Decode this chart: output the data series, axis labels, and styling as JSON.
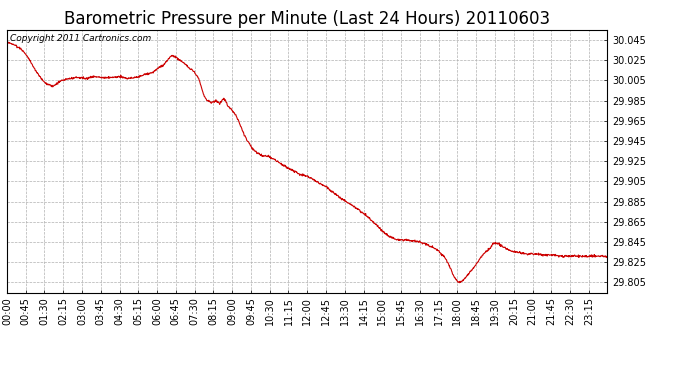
{
  "title": "Barometric Pressure per Minute (Last 24 Hours) 20110603",
  "copyright_text": "Copyright 2011 Cartronics.com",
  "line_color": "#cc0000",
  "background_color": "#ffffff",
  "grid_color": "#b0b0b0",
  "yticks": [
    29.805,
    29.825,
    29.845,
    29.865,
    29.885,
    29.905,
    29.925,
    29.945,
    29.965,
    29.985,
    30.005,
    30.025,
    30.045
  ],
  "ylim": [
    29.795,
    30.055
  ],
  "xtick_labels": [
    "00:00",
    "00:45",
    "01:30",
    "02:15",
    "03:00",
    "03:45",
    "04:30",
    "05:15",
    "06:00",
    "06:45",
    "07:30",
    "08:15",
    "09:00",
    "09:45",
    "10:30",
    "11:15",
    "12:00",
    "12:45",
    "13:30",
    "14:15",
    "15:00",
    "15:45",
    "16:30",
    "17:15",
    "18:00",
    "18:45",
    "19:30",
    "20:15",
    "21:00",
    "21:45",
    "22:30",
    "23:15"
  ],
  "title_fontsize": 12,
  "copyright_fontsize": 6.5,
  "tick_fontsize": 7,
  "waypoints": [
    [
      0,
      30.043
    ],
    [
      20,
      30.04
    ],
    [
      40,
      30.034
    ],
    [
      55,
      30.025
    ],
    [
      70,
      30.014
    ],
    [
      90,
      30.003
    ],
    [
      110,
      29.999
    ],
    [
      130,
      30.005
    ],
    [
      150,
      30.007
    ],
    [
      170,
      30.008
    ],
    [
      190,
      30.007
    ],
    [
      210,
      30.009
    ],
    [
      230,
      30.008
    ],
    [
      250,
      30.008
    ],
    [
      270,
      30.009
    ],
    [
      290,
      30.007
    ],
    [
      310,
      30.008
    ],
    [
      330,
      30.011
    ],
    [
      350,
      30.013
    ],
    [
      365,
      30.018
    ],
    [
      375,
      30.02
    ],
    [
      385,
      30.025
    ],
    [
      395,
      30.03
    ],
    [
      405,
      30.028
    ],
    [
      415,
      30.025
    ],
    [
      425,
      30.022
    ],
    [
      435,
      30.018
    ],
    [
      445,
      30.015
    ],
    [
      455,
      30.01
    ],
    [
      460,
      30.006
    ],
    [
      465,
      30.0
    ],
    [
      470,
      29.993
    ],
    [
      475,
      29.988
    ],
    [
      480,
      29.985
    ],
    [
      490,
      29.983
    ],
    [
      500,
      29.985
    ],
    [
      505,
      29.984
    ],
    [
      510,
      29.982
    ],
    [
      515,
      29.985
    ],
    [
      520,
      29.987
    ],
    [
      525,
      29.984
    ],
    [
      530,
      29.98
    ],
    [
      540,
      29.975
    ],
    [
      550,
      29.97
    ],
    [
      560,
      29.96
    ],
    [
      570,
      29.95
    ],
    [
      585,
      29.94
    ],
    [
      600,
      29.933
    ],
    [
      615,
      29.93
    ],
    [
      625,
      29.93
    ],
    [
      635,
      29.928
    ],
    [
      645,
      29.926
    ],
    [
      660,
      29.922
    ],
    [
      675,
      29.918
    ],
    [
      690,
      29.915
    ],
    [
      705,
      29.912
    ],
    [
      720,
      29.91
    ],
    [
      735,
      29.907
    ],
    [
      750,
      29.903
    ],
    [
      765,
      29.9
    ],
    [
      780,
      29.895
    ],
    [
      795,
      29.89
    ],
    [
      810,
      29.886
    ],
    [
      825,
      29.882
    ],
    [
      840,
      29.878
    ],
    [
      855,
      29.873
    ],
    [
      870,
      29.868
    ],
    [
      885,
      29.862
    ],
    [
      900,
      29.856
    ],
    [
      915,
      29.851
    ],
    [
      930,
      29.848
    ],
    [
      945,
      29.847
    ],
    [
      960,
      29.847
    ],
    [
      975,
      29.846
    ],
    [
      990,
      29.845
    ],
    [
      1005,
      29.843
    ],
    [
      1020,
      29.84
    ],
    [
      1035,
      29.836
    ],
    [
      1050,
      29.83
    ],
    [
      1060,
      29.822
    ],
    [
      1070,
      29.812
    ],
    [
      1080,
      29.806
    ],
    [
      1085,
      29.805
    ],
    [
      1090,
      29.806
    ],
    [
      1095,
      29.808
    ],
    [
      1100,
      29.81
    ],
    [
      1110,
      29.815
    ],
    [
      1120,
      29.82
    ],
    [
      1130,
      29.826
    ],
    [
      1140,
      29.832
    ],
    [
      1150,
      29.836
    ],
    [
      1160,
      29.84
    ],
    [
      1165,
      29.843
    ],
    [
      1170,
      29.844
    ],
    [
      1180,
      29.843
    ],
    [
      1190,
      29.84
    ],
    [
      1200,
      29.838
    ],
    [
      1210,
      29.836
    ],
    [
      1220,
      29.835
    ],
    [
      1235,
      29.834
    ],
    [
      1250,
      29.833
    ],
    [
      1270,
      29.833
    ],
    [
      1290,
      29.832
    ],
    [
      1310,
      29.832
    ],
    [
      1330,
      29.831
    ],
    [
      1360,
      29.831
    ],
    [
      1390,
      29.831
    ],
    [
      1420,
      29.831
    ],
    [
      1439,
      29.831
    ]
  ]
}
